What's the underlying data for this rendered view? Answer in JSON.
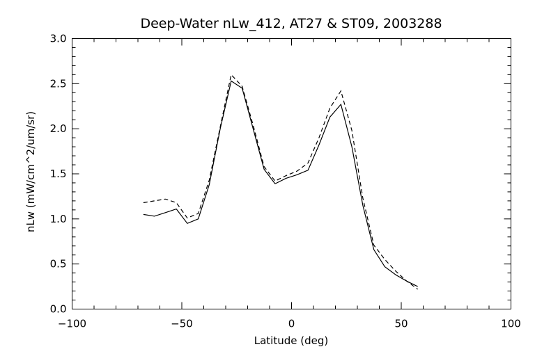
{
  "chart_data": {
    "type": "line",
    "title": "Deep-Water nLw_412, AT27 & ST09, 2003288",
    "xlabel": "Latitude (deg)",
    "ylabel": "nLw (mW/cm^2/um/sr)",
    "xlim": [
      -100,
      100
    ],
    "ylim": [
      0.0,
      3.0
    ],
    "x_ticks": [
      -100,
      -50,
      0,
      50,
      100
    ],
    "x_tick_labels": [
      "−100",
      "−50",
      "0",
      "50",
      "100"
    ],
    "y_ticks": [
      0.0,
      0.5,
      1.0,
      1.5,
      2.0,
      2.5,
      3.0
    ],
    "y_tick_labels": [
      "0.0",
      "0.5",
      "1.0",
      "1.5",
      "2.0",
      "2.5",
      "3.0"
    ],
    "x_minor_step": 10,
    "y_minor_step": 0.1,
    "grid": false,
    "series": [
      {
        "line_style": "solid",
        "color": "#000000",
        "points": [
          [
            -67.5,
            1.05
          ],
          [
            -62.5,
            1.03
          ],
          [
            -57.5,
            1.07
          ],
          [
            -52.5,
            1.11
          ],
          [
            -47.5,
            0.95
          ],
          [
            -42.5,
            1.0
          ],
          [
            -37.5,
            1.38
          ],
          [
            -32.5,
            2.0
          ],
          [
            -27.5,
            2.53
          ],
          [
            -22.5,
            2.45
          ],
          [
            -17.5,
            2.0
          ],
          [
            -12.5,
            1.55
          ],
          [
            -7.5,
            1.39
          ],
          [
            -2.5,
            1.45
          ],
          [
            2.5,
            1.49
          ],
          [
            7.5,
            1.54
          ],
          [
            12.5,
            1.82
          ],
          [
            17.5,
            2.13
          ],
          [
            22.5,
            2.27
          ],
          [
            27.5,
            1.8
          ],
          [
            32.5,
            1.15
          ],
          [
            37.5,
            0.66
          ],
          [
            42.5,
            0.47
          ],
          [
            47.5,
            0.38
          ],
          [
            52.5,
            0.31
          ],
          [
            57.5,
            0.25
          ]
        ]
      },
      {
        "line_style": "dashed",
        "color": "#000000",
        "points": [
          [
            -67.5,
            1.18
          ],
          [
            -62.5,
            1.2
          ],
          [
            -57.5,
            1.22
          ],
          [
            -52.5,
            1.18
          ],
          [
            -47.5,
            1.01
          ],
          [
            -42.5,
            1.06
          ],
          [
            -37.5,
            1.43
          ],
          [
            -32.5,
            2.02
          ],
          [
            -27.5,
            2.6
          ],
          [
            -22.5,
            2.47
          ],
          [
            -17.5,
            2.04
          ],
          [
            -12.5,
            1.58
          ],
          [
            -7.5,
            1.42
          ],
          [
            -2.5,
            1.48
          ],
          [
            2.5,
            1.53
          ],
          [
            7.5,
            1.62
          ],
          [
            12.5,
            1.9
          ],
          [
            17.5,
            2.23
          ],
          [
            22.5,
            2.42
          ],
          [
            27.5,
            1.98
          ],
          [
            32.5,
            1.23
          ],
          [
            37.5,
            0.71
          ],
          [
            42.5,
            0.55
          ],
          [
            47.5,
            0.42
          ],
          [
            52.5,
            0.31
          ],
          [
            57.5,
            0.22
          ]
        ]
      }
    ]
  }
}
